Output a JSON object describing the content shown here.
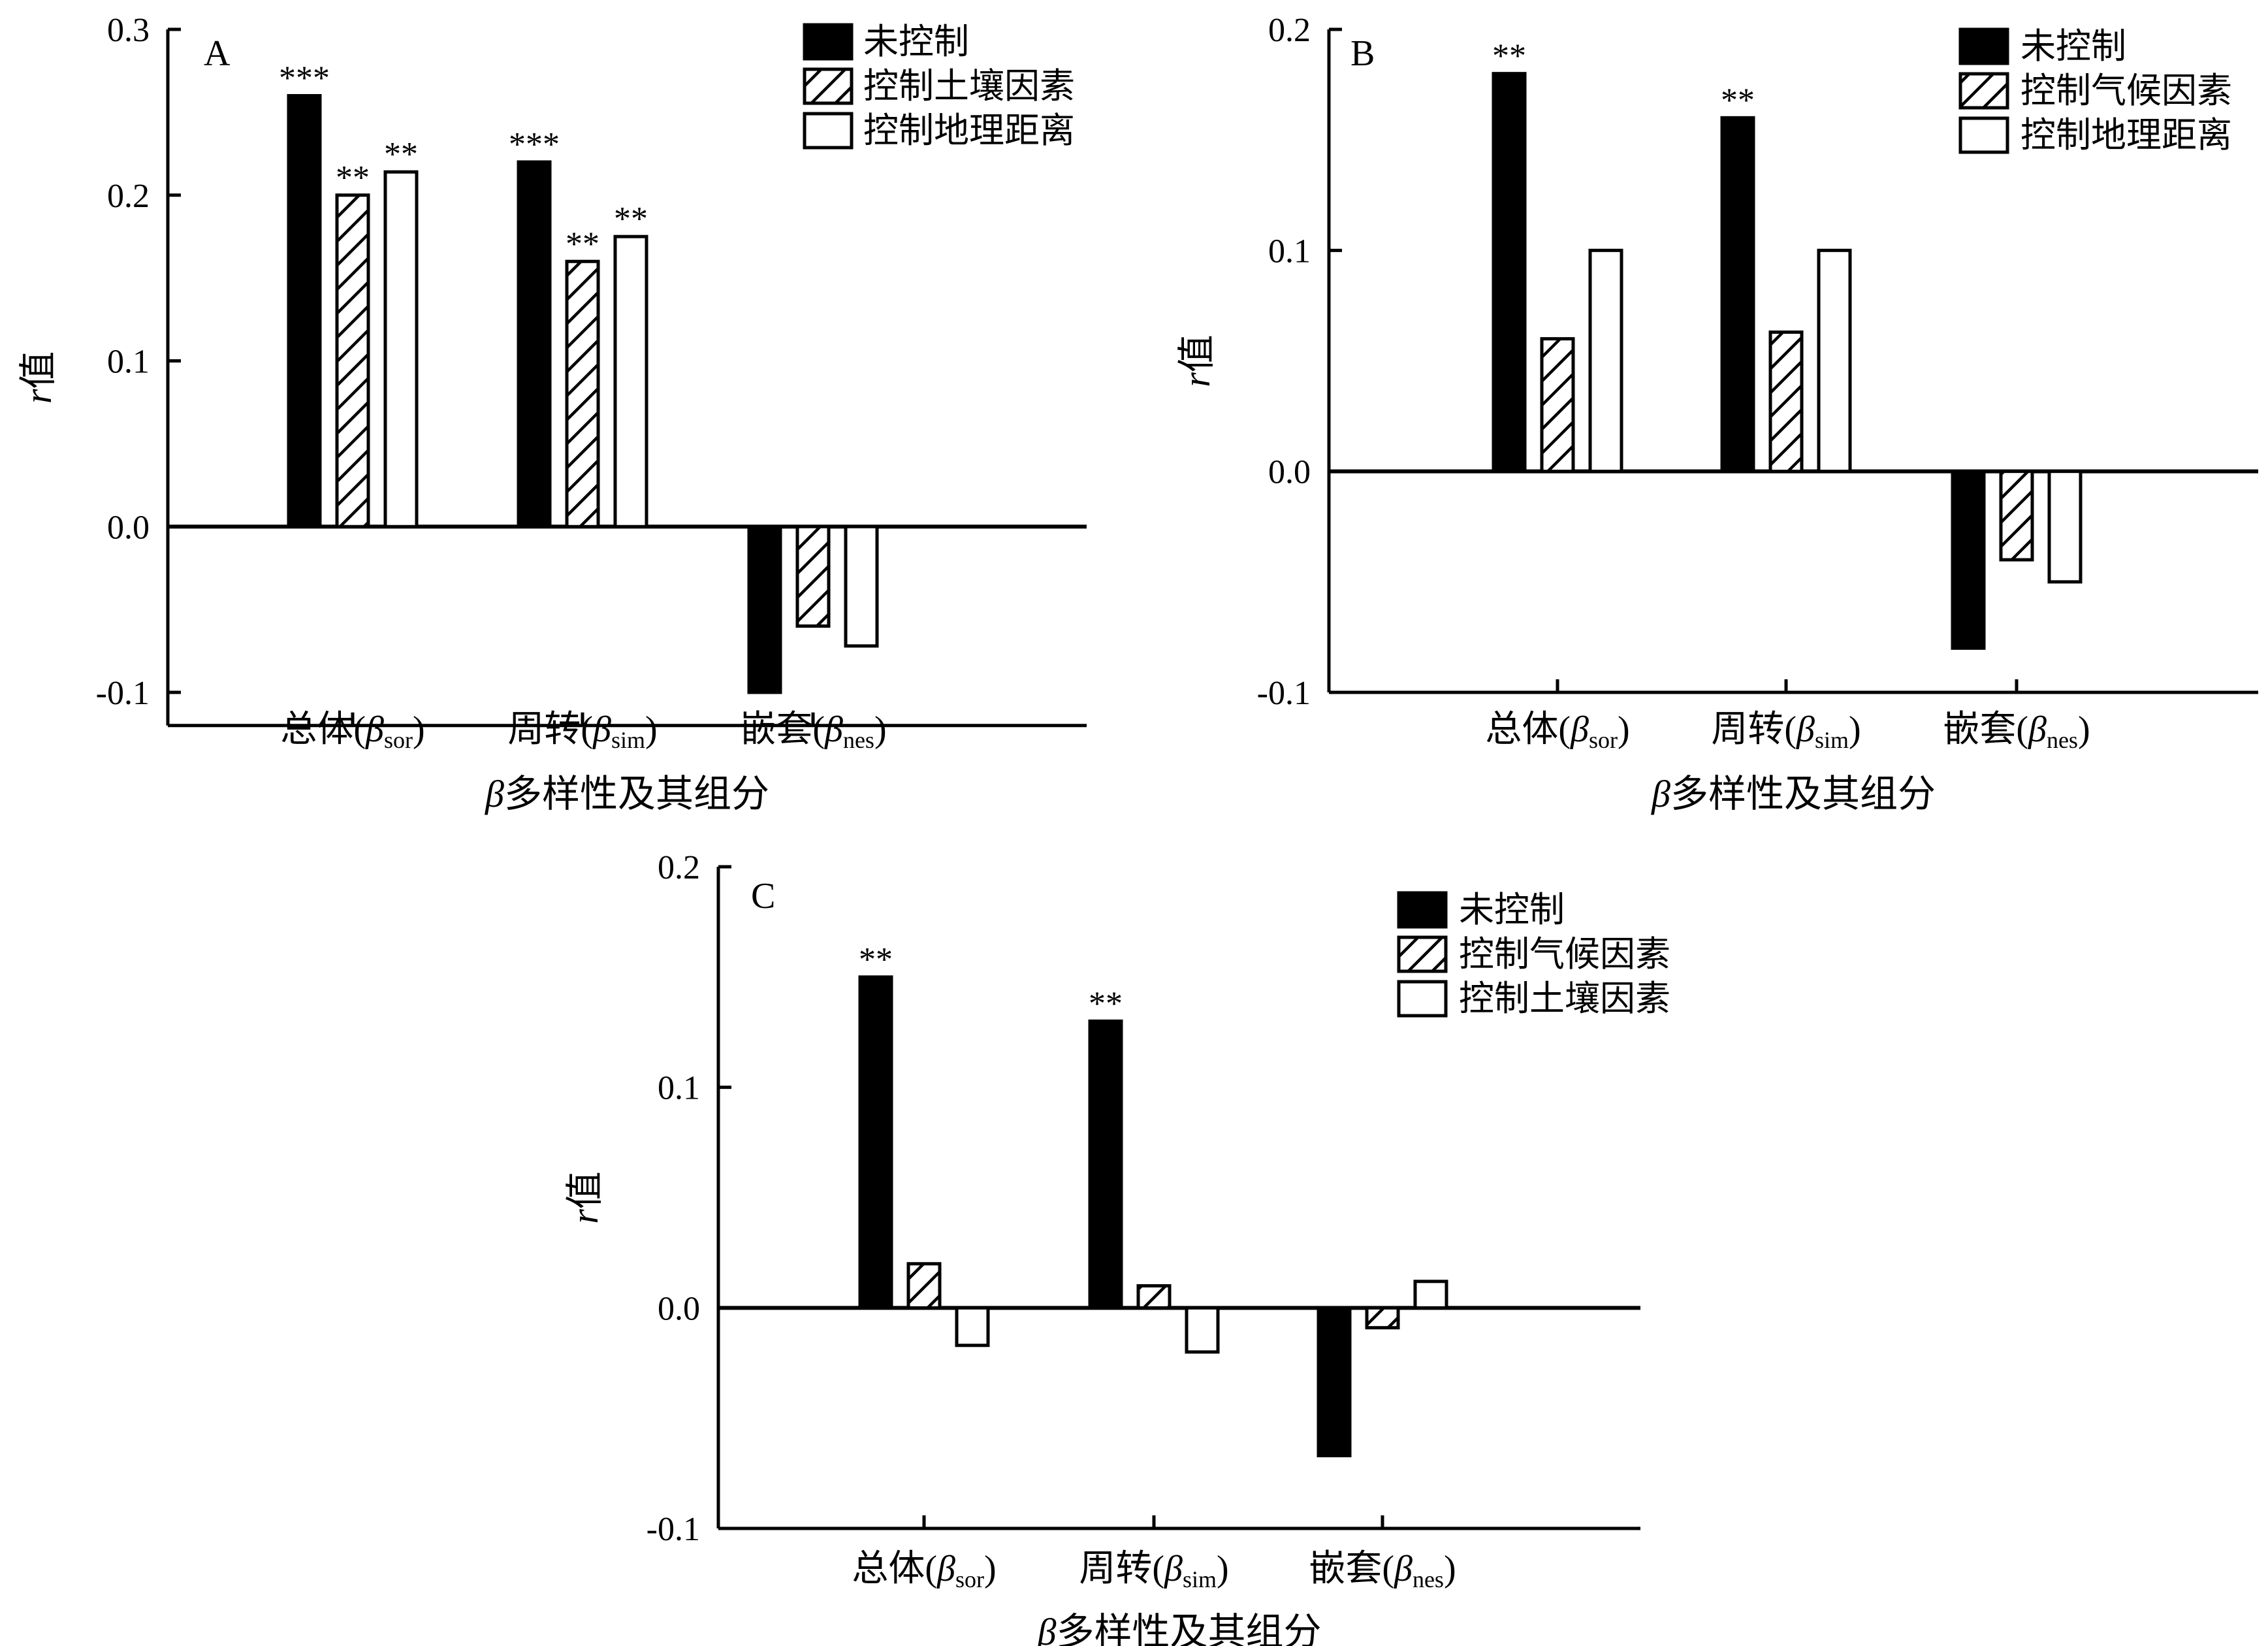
{
  "chart_data": [
    {
      "type": "bar",
      "panel": "A",
      "categories": [
        {
          "label": "总体(",
          "sym": "β",
          "sub": "sor",
          "close": ")"
        },
        {
          "label": "周转(",
          "sym": "β",
          "sub": "sim",
          "close": ")"
        },
        {
          "label": "嵌套(",
          "sym": "β",
          "sub": "nes",
          "close": ")"
        }
      ],
      "series": [
        {
          "name": "未控制",
          "fill": "black",
          "values": [
            0.26,
            0.22,
            -0.1
          ],
          "stars": [
            "***",
            "***",
            ""
          ]
        },
        {
          "name": "控制土壤因素",
          "fill": "hatch",
          "values": [
            0.2,
            0.16,
            -0.06
          ],
          "stars": [
            "**",
            "**",
            ""
          ]
        },
        {
          "name": "控制地理距离",
          "fill": "white",
          "values": [
            0.214,
            0.175,
            -0.072
          ],
          "stars": [
            "**",
            "**",
            ""
          ]
        }
      ],
      "ylim": [
        -0.12,
        0.3
      ],
      "yticks": [
        "0.3",
        "0.2",
        "0.1",
        "0.0",
        "-0.1"
      ],
      "ytick_values": [
        0.3,
        0.2,
        0.1,
        0.0,
        -0.1
      ],
      "ylabel": {
        "italic": "r",
        "text": "值"
      },
      "xlabel": {
        "sym": "β",
        "text": "多样性及其组分"
      }
    },
    {
      "type": "bar",
      "panel": "B",
      "categories": [
        {
          "label": "总体(",
          "sym": "β",
          "sub": "sor",
          "close": ")"
        },
        {
          "label": "周转(",
          "sym": "β",
          "sub": "sim",
          "close": ")"
        },
        {
          "label": "嵌套(",
          "sym": "β",
          "sub": "nes",
          "close": ")"
        }
      ],
      "series": [
        {
          "name": "未控制",
          "fill": "black",
          "values": [
            0.18,
            0.16,
            -0.08
          ],
          "stars": [
            "**",
            "**",
            ""
          ]
        },
        {
          "name": "控制气候因素",
          "fill": "hatch",
          "values": [
            0.06,
            0.063,
            -0.04
          ],
          "stars": [
            "",
            "",
            ""
          ]
        },
        {
          "name": "控制地理距离",
          "fill": "white",
          "values": [
            0.1,
            0.1,
            -0.05
          ],
          "stars": [
            "",
            "",
            ""
          ]
        }
      ],
      "ylim": [
        -0.1,
        0.2
      ],
      "yticks": [
        "0.2",
        "0.1",
        "0.0",
        "-0.1"
      ],
      "ytick_values": [
        0.2,
        0.1,
        0.0,
        -0.1
      ],
      "ylabel": {
        "italic": "r",
        "text": "值"
      },
      "xlabel": {
        "sym": "β",
        "text": "多样性及其组分"
      }
    },
    {
      "type": "bar",
      "panel": "C",
      "categories": [
        {
          "label": "总体(",
          "sym": "β",
          "sub": "sor",
          "close": ")"
        },
        {
          "label": "周转(",
          "sym": "β",
          "sub": "sim",
          "close": ")"
        },
        {
          "label": "嵌套(",
          "sym": "β",
          "sub": "nes",
          "close": ")"
        }
      ],
      "series": [
        {
          "name": "未控制",
          "fill": "black",
          "values": [
            0.15,
            0.13,
            -0.067
          ],
          "stars": [
            "**",
            "**",
            ""
          ]
        },
        {
          "name": "控制气候因素",
          "fill": "hatch",
          "values": [
            0.02,
            0.01,
            -0.009
          ],
          "stars": [
            "",
            "",
            ""
          ]
        },
        {
          "name": "控制土壤因素",
          "fill": "white",
          "values": [
            -0.017,
            -0.02,
            0.012
          ],
          "stars": [
            "",
            "",
            ""
          ]
        }
      ],
      "ylim": [
        -0.1,
        0.2
      ],
      "yticks": [
        "0.2",
        "0.1",
        "0.0",
        "-0.1"
      ],
      "ytick_values": [
        0.2,
        0.1,
        0.0,
        -0.1
      ],
      "ylabel": {
        "italic": "r",
        "text": "值"
      },
      "xlabel": {
        "sym": "β",
        "text": "多样性及其组分"
      }
    }
  ]
}
